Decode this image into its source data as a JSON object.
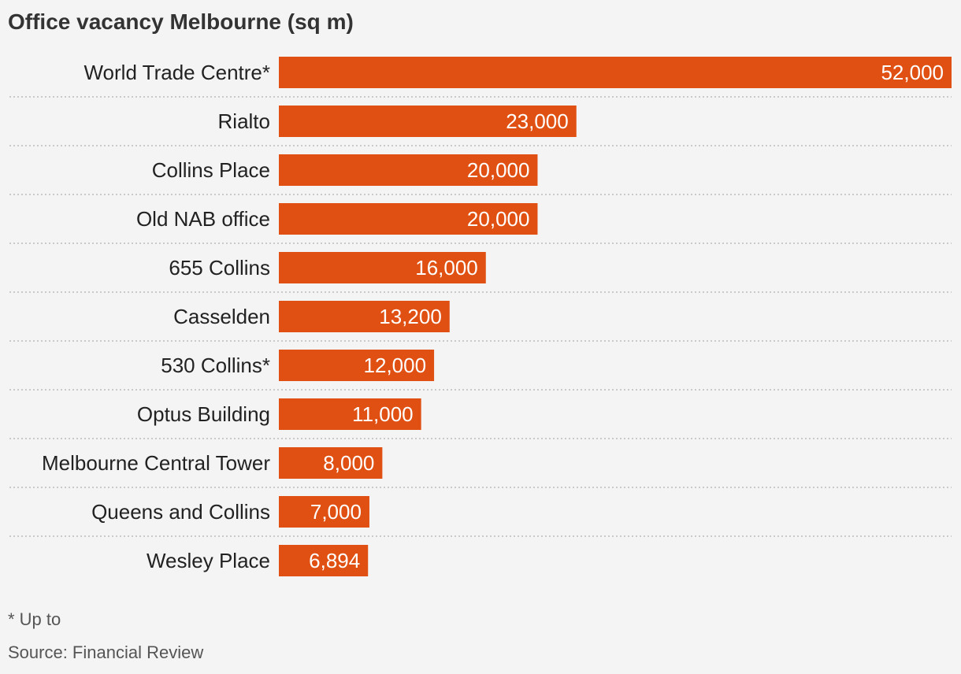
{
  "title": "Office vacancy Melbourne (sq m)",
  "footnote": "* Up to",
  "source": "Source: Financial Review",
  "colors": {
    "bar": "#e05012",
    "grid": "#bbbbbb",
    "background": "#f4f4f4"
  },
  "chart_data": {
    "type": "bar",
    "orientation": "horizontal",
    "title": "Office vacancy Melbourne (sq m)",
    "xlabel": "",
    "ylabel": "",
    "categories": [
      "World Trade Centre*",
      "Rialto",
      "Collins Place",
      "Old NAB office",
      "655 Collins",
      "Casselden",
      "530 Collins*",
      "Optus Building",
      "Melbourne Central Tower",
      "Queens and Collins",
      "Wesley Place"
    ],
    "values": [
      52000,
      23000,
      20000,
      20000,
      16000,
      13200,
      12000,
      11000,
      8000,
      7000,
      6894
    ],
    "value_labels": [
      "52,000",
      "23,000",
      "20,000",
      "20,000",
      "16,000",
      "13,200",
      "12,000",
      "11,000",
      "8,000",
      "7,000",
      "6,894"
    ],
    "xlim": [
      0,
      52000
    ],
    "grid": false,
    "legend": "none"
  }
}
